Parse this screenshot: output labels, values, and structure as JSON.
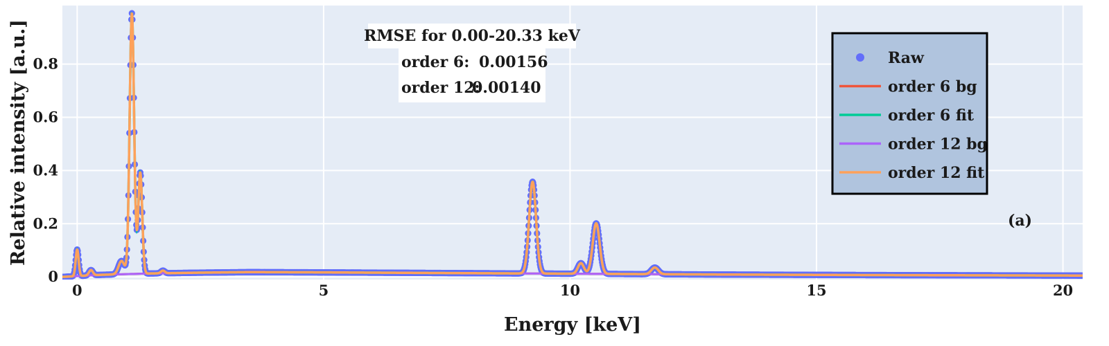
{
  "chart_data": {
    "type": "line",
    "xlabel": "Energy [keV]",
    "ylabel": "Relative intensity [a.u.]",
    "xlim": [
      -0.3,
      20.4
    ],
    "ylim": [
      -0.01,
      1.02
    ],
    "x_ticks": [
      0,
      5,
      10,
      15,
      20
    ],
    "x_tick_labels": [
      "0",
      "5",
      "10",
      "15",
      "20"
    ],
    "y_ticks": [
      0,
      0.2,
      0.4,
      0.6,
      0.8
    ],
    "y_tick_labels": [
      "0",
      "0.2",
      "0.4",
      "0.6",
      "0.8"
    ],
    "grid": true,
    "legend_position": "top-right",
    "panel_label": "(a)",
    "annotation": {
      "title": "RMSE for 0.00-20.33 keV",
      "rows": [
        {
          "label": "order 6:",
          "value": "0.00156"
        },
        {
          "label": "order 12:",
          "value": "0.00140"
        }
      ]
    },
    "colors": {
      "plot_bg": "#e5ecf6",
      "grid": "#ffffff",
      "raw": "#636efa",
      "order6_bg": "#ef553b",
      "order6_fit": "#00cc96",
      "order12_bg": "#ab63fa",
      "order12_fit": "#ffa15a",
      "legend_bg": "#b0c4de"
    },
    "peaks": [
      {
        "center": 0.0,
        "height": 0.1,
        "width": 0.03
      },
      {
        "center": 0.28,
        "height": 0.02,
        "width": 0.04
      },
      {
        "center": 0.9,
        "height": 0.05,
        "width": 0.06
      },
      {
        "center": 1.11,
        "height": 0.98,
        "width": 0.045
      },
      {
        "center": 1.28,
        "height": 0.38,
        "width": 0.04
      },
      {
        "center": 1.74,
        "height": 0.01,
        "width": 0.04
      },
      {
        "center": 9.24,
        "height": 0.345,
        "width": 0.07
      },
      {
        "center": 10.22,
        "height": 0.04,
        "width": 0.06
      },
      {
        "center": 10.53,
        "height": 0.19,
        "width": 0.07
      },
      {
        "center": 11.72,
        "height": 0.025,
        "width": 0.07
      }
    ],
    "background_points": {
      "x": [
        -0.3,
        0.5,
        1.5,
        2.5,
        3.5,
        5.0,
        7.0,
        9.0,
        11.0,
        13.0,
        16.0,
        20.4
      ],
      "y": [
        0.0,
        0.008,
        0.013,
        0.016,
        0.018,
        0.017,
        0.015,
        0.013,
        0.011,
        0.009,
        0.007,
        0.005
      ]
    },
    "series": [
      {
        "name": "Raw",
        "kind": "markers"
      },
      {
        "name": "order 6 bg",
        "kind": "line"
      },
      {
        "name": "order 6 fit",
        "kind": "line"
      },
      {
        "name": "order 12 bg",
        "kind": "line"
      },
      {
        "name": "order 12 fit",
        "kind": "line"
      }
    ]
  }
}
